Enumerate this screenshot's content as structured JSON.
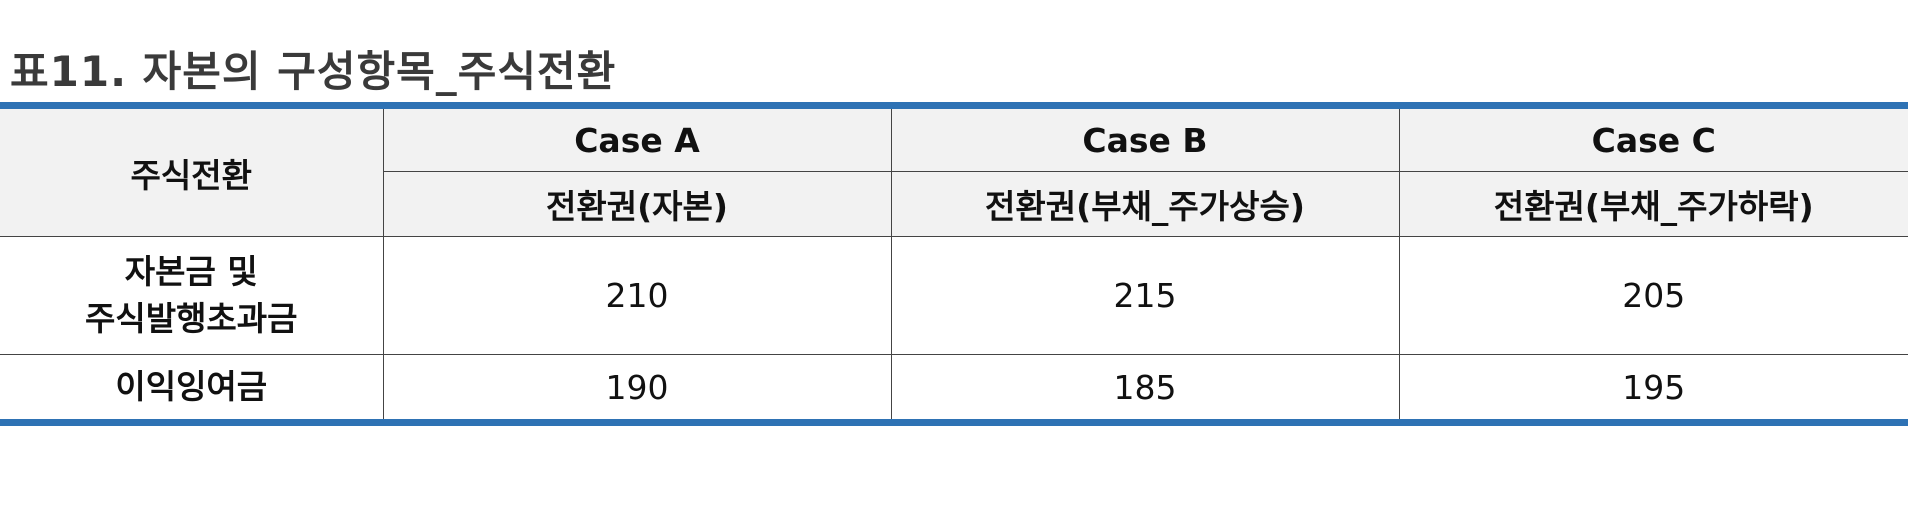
{
  "title": "표11. 자본의 구성항목_주식전환",
  "table": {
    "corner_header": "주식전환",
    "cases": [
      {
        "name": "Case A",
        "subheader": "전환권(자본)"
      },
      {
        "name": "Case B",
        "subheader": "전환권(부채_주가상승)"
      },
      {
        "name": "Case C",
        "subheader": "전환권(부채_주가하락)"
      }
    ],
    "rows": [
      {
        "label_line1": "자본금 및",
        "label_line2": "주식발행초과금",
        "values": [
          "210",
          "215",
          "205"
        ]
      },
      {
        "label_line1": "이익잉여금",
        "values": [
          "190",
          "185",
          "195"
        ]
      }
    ]
  }
}
